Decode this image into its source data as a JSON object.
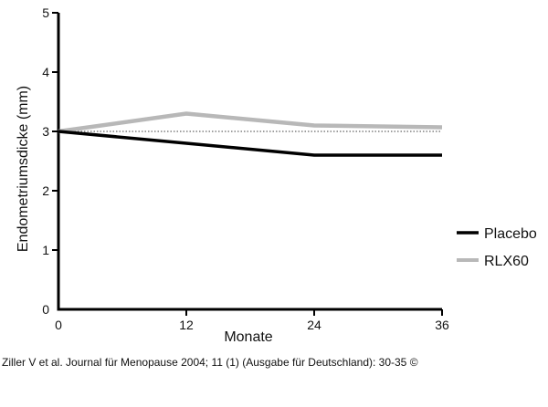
{
  "chart_data": {
    "type": "line",
    "title": "",
    "xlabel": "Monate",
    "ylabel": "Endometriumsdicke (mm)",
    "x": [
      0,
      12,
      24,
      36
    ],
    "xticks": [
      0,
      12,
      24,
      36
    ],
    "yticks": [
      0,
      1,
      2,
      3,
      4,
      5
    ],
    "xlim": [
      0,
      36
    ],
    "ylim": [
      0,
      5
    ],
    "grid": false,
    "legend_position": "right",
    "series": [
      {
        "name": "Placebo",
        "values": [
          3.0,
          2.8,
          2.6,
          2.6
        ],
        "color": "#000000"
      },
      {
        "name": "RLX60",
        "values": [
          3.0,
          3.3,
          3.1,
          3.07
        ],
        "color": "#b8b8b8"
      }
    ],
    "reference_line": {
      "y": 3.0,
      "style": "dotted",
      "color": "#666666"
    }
  },
  "footer": {
    "citation": "Ziller V et al. Journal für Menopause 2004; 11 (1) (Ausgabe für Deutschland): 30-35 ©"
  }
}
